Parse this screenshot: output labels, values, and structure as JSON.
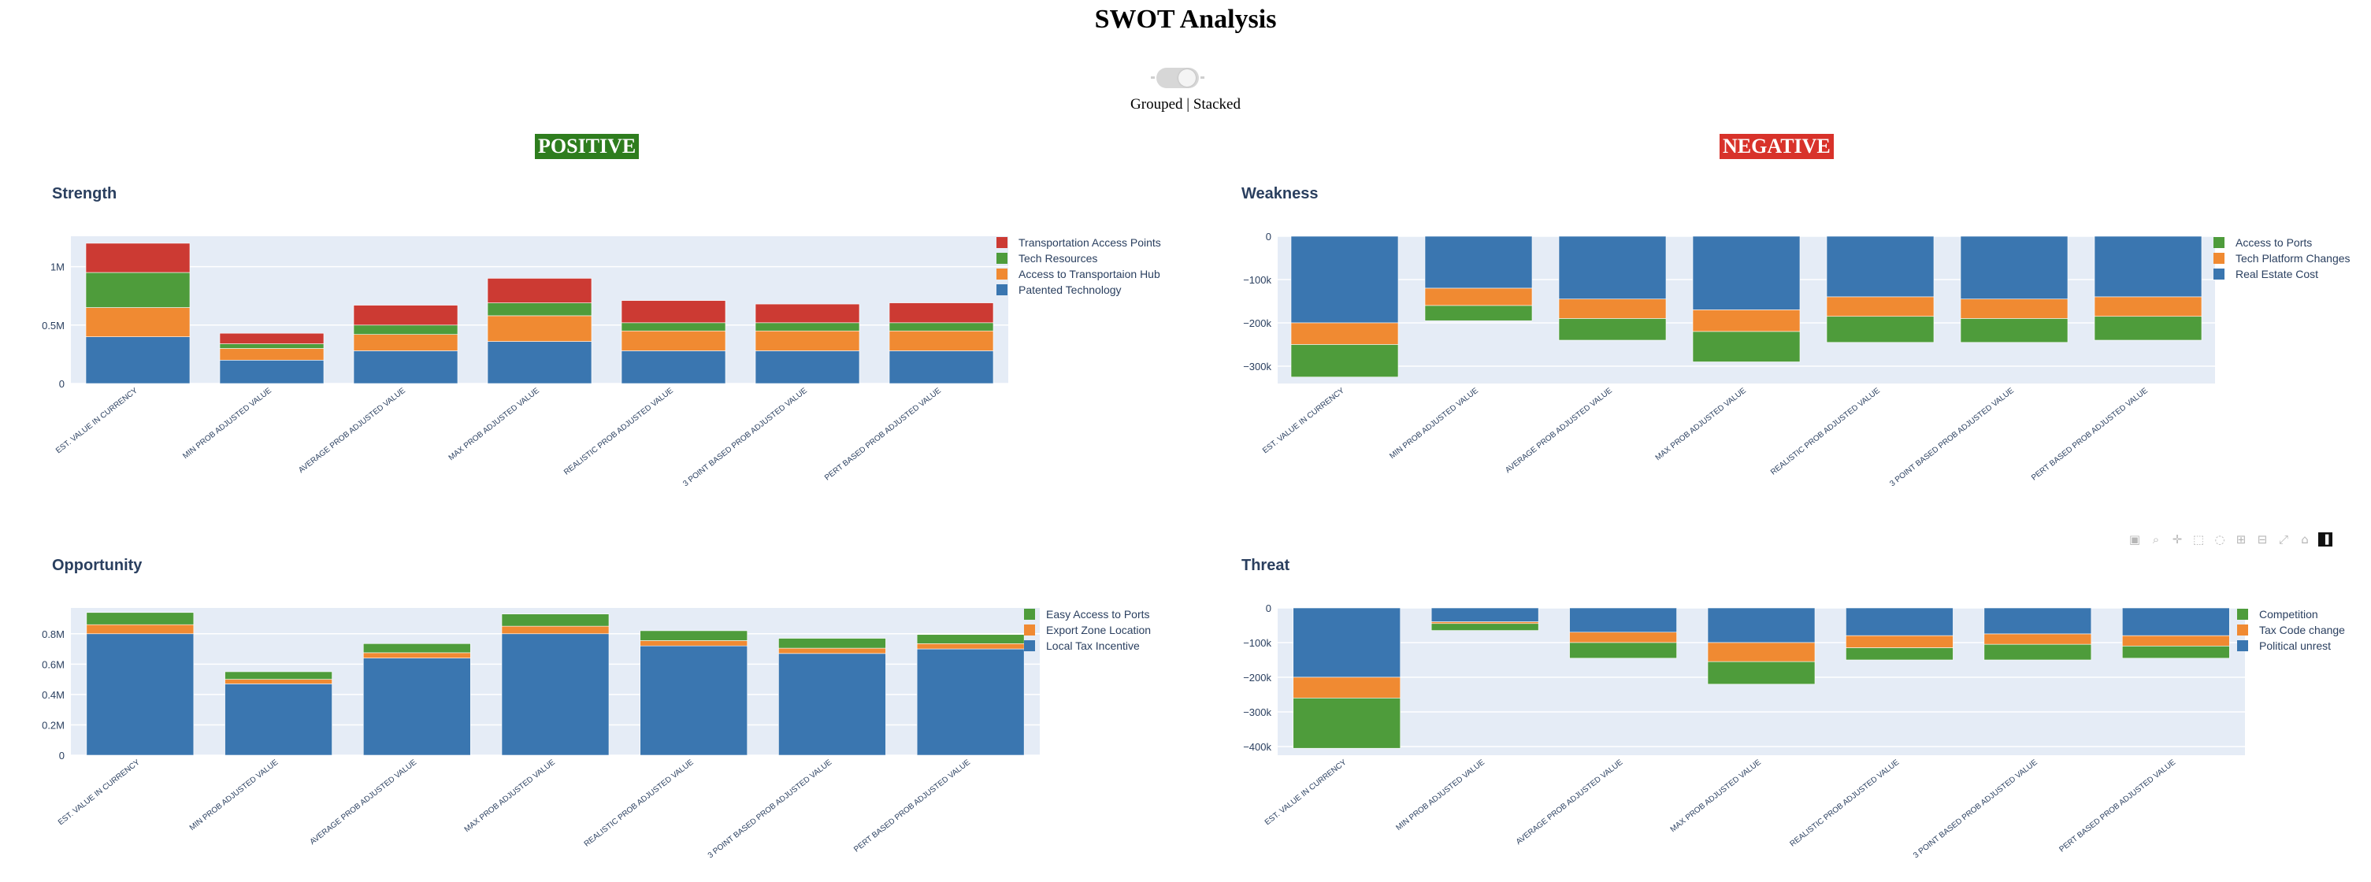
{
  "page": {
    "title": "SWOT Analysis",
    "toggle_label": "Grouped | Stacked",
    "positive_label": "POSITIVE",
    "negative_label": "NEGATIVE"
  },
  "colors": {
    "blue": "#3a76b0",
    "orange": "#f08a32",
    "green": "#4e9c3b",
    "red": "#cc3a33",
    "plot_bg": "#e5ecf6",
    "positive_bg": "#2e7d1e",
    "negative_bg": "#d8322a"
  },
  "modebar": {
    "icons": [
      "camera-icon",
      "zoom-icon",
      "pan-icon",
      "box-select-icon",
      "lasso-icon",
      "zoom-in-icon",
      "zoom-out-icon",
      "autoscale-icon",
      "reset-axes-icon",
      "plotly-logo-icon"
    ]
  },
  "chart_data": [
    {
      "id": "strength",
      "type": "bar",
      "barmode": "stacked",
      "title": "Strength",
      "categories": [
        "EST. VALUE IN CURRENCY",
        "MIN PROB ADJUSTED VALUE",
        "AVERAGE PROB ADJUSTED VALUE",
        "MAX PROB ADJUSTED VALUE",
        "REALISTIC PROB ADJUSTED VALUE",
        "3 POINT BASED PROB ADJUSTED VALUE",
        "PERT BASED PROB ADJUSTED VALUE"
      ],
      "ylim": [
        0,
        1260000
      ],
      "yticks": [
        {
          "v": 0,
          "label": "0"
        },
        {
          "v": 500000,
          "label": "0.5M"
        },
        {
          "v": 1000000,
          "label": "1M"
        }
      ],
      "legend_position": "right",
      "series": [
        {
          "name": "Patented Technology",
          "color": "#3a76b0",
          "values": [
            400000,
            200000,
            280000,
            360000,
            280000,
            280000,
            280000
          ]
        },
        {
          "name": "Access to Transportaion Hub",
          "color": "#f08a32",
          "values": [
            250000,
            100000,
            140000,
            220000,
            170000,
            170000,
            170000
          ]
        },
        {
          "name": "Tech Resources",
          "color": "#4e9c3b",
          "values": [
            300000,
            40000,
            80000,
            110000,
            70000,
            70000,
            70000
          ]
        },
        {
          "name": "Transportation Access Points",
          "color": "#cc3a33",
          "values": [
            250000,
            90000,
            170000,
            210000,
            190000,
            160000,
            170000
          ]
        }
      ]
    },
    {
      "id": "weakness",
      "type": "bar",
      "barmode": "stacked",
      "title": "Weakness",
      "categories": [
        "EST. VALUE IN CURRENCY",
        "MIN PROB ADJUSTED VALUE",
        "AVERAGE PROB ADJUSTED VALUE",
        "MAX PROB ADJUSTED VALUE",
        "REALISTIC PROB ADJUSTED VALUE",
        "3 POINT BASED PROB ADJUSTED VALUE",
        "PERT BASED PROB ADJUSTED VALUE"
      ],
      "ylim": [
        -340000,
        0
      ],
      "yticks": [
        {
          "v": 0,
          "label": "0"
        },
        {
          "v": -100000,
          "label": "−100k"
        },
        {
          "v": -200000,
          "label": "−200k"
        },
        {
          "v": -300000,
          "label": "−300k"
        }
      ],
      "legend_position": "right",
      "series": [
        {
          "name": "Real Estate Cost",
          "color": "#3a76b0",
          "values": [
            -200000,
            -120000,
            -145000,
            -170000,
            -140000,
            -145000,
            -140000
          ]
        },
        {
          "name": "Tech Platform Changes",
          "color": "#f08a32",
          "values": [
            -50000,
            -40000,
            -45000,
            -50000,
            -45000,
            -45000,
            -45000
          ]
        },
        {
          "name": "Access to Ports",
          "color": "#4e9c3b",
          "values": [
            -75000,
            -35000,
            -50000,
            -70000,
            -60000,
            -55000,
            -55000
          ]
        }
      ]
    },
    {
      "id": "opportunity",
      "type": "bar",
      "barmode": "stacked",
      "title": "Opportunity",
      "categories": [
        "EST. VALUE IN CURRENCY",
        "MIN PROB ADJUSTED VALUE",
        "AVERAGE PROB ADJUSTED VALUE",
        "MAX PROB ADJUSTED VALUE",
        "REALISTIC PROB ADJUSTED VALUE",
        "3 POINT BASED PROB ADJUSTED VALUE",
        "PERT BASED PROB ADJUSTED VALUE"
      ],
      "ylim": [
        0,
        970000
      ],
      "yticks": [
        {
          "v": 0,
          "label": "0"
        },
        {
          "v": 200000,
          "label": "0.2M"
        },
        {
          "v": 400000,
          "label": "0.4M"
        },
        {
          "v": 600000,
          "label": "0.6M"
        },
        {
          "v": 800000,
          "label": "0.8M"
        }
      ],
      "legend_position": "right",
      "series": [
        {
          "name": "Local Tax Incentive",
          "color": "#3a76b0",
          "values": [
            800000,
            470000,
            640000,
            800000,
            720000,
            670000,
            700000
          ]
        },
        {
          "name": "Export Zone Location",
          "color": "#f08a32",
          "values": [
            60000,
            30000,
            35000,
            50000,
            35000,
            35000,
            35000
          ]
        },
        {
          "name": "Easy Access to Ports",
          "color": "#4e9c3b",
          "values": [
            80000,
            50000,
            60000,
            80000,
            65000,
            65000,
            60000
          ]
        }
      ]
    },
    {
      "id": "threat",
      "type": "bar",
      "barmode": "stacked",
      "title": "Threat",
      "categories": [
        "EST. VALUE IN CURRENCY",
        "MIN PROB ADJUSTED VALUE",
        "AVERAGE PROB ADJUSTED VALUE",
        "MAX PROB ADJUSTED VALUE",
        "REALISTIC PROB ADJUSTED VALUE",
        "3 POINT BASED PROB ADJUSTED VALUE",
        "PERT BASED PROB ADJUSTED VALUE"
      ],
      "ylim": [
        -425000,
        0
      ],
      "yticks": [
        {
          "v": 0,
          "label": "0"
        },
        {
          "v": -100000,
          "label": "−100k"
        },
        {
          "v": -200000,
          "label": "−200k"
        },
        {
          "v": -300000,
          "label": "−300k"
        },
        {
          "v": -400000,
          "label": "−400k"
        }
      ],
      "legend_position": "right",
      "series": [
        {
          "name": "Political unrest",
          "color": "#3a76b0",
          "values": [
            -200000,
            -40000,
            -70000,
            -100000,
            -80000,
            -75000,
            -80000
          ]
        },
        {
          "name": "Tax Code change",
          "color": "#f08a32",
          "values": [
            -60000,
            -5000,
            -30000,
            -55000,
            -35000,
            -30000,
            -30000
          ]
        },
        {
          "name": "Competition",
          "color": "#4e9c3b",
          "values": [
            -145000,
            -20000,
            -45000,
            -65000,
            -35000,
            -45000,
            -35000
          ]
        }
      ]
    }
  ]
}
